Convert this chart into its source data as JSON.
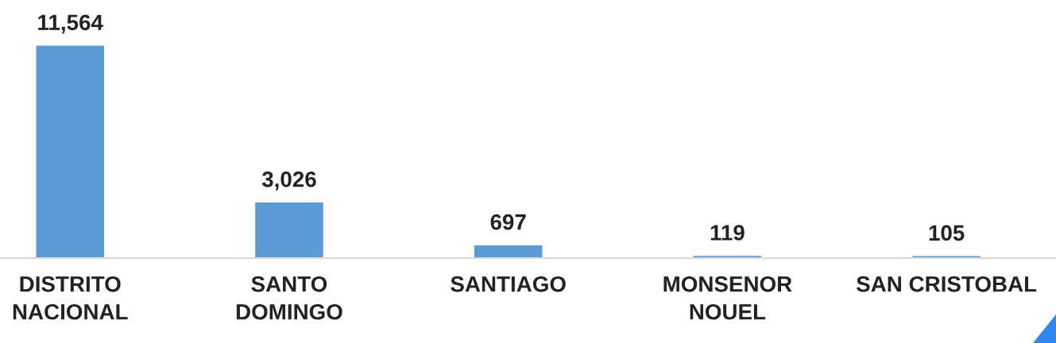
{
  "chart_data": {
    "type": "bar",
    "categories": [
      "DISTRITO\nNACIONAL",
      "SANTO\nDOMINGO",
      "SANTIAGO",
      "MONSENOR\nNOUEL",
      "SAN CRISTOBAL"
    ],
    "values": [
      11564,
      3026,
      697,
      119,
      105
    ],
    "value_labels": [
      "11,564",
      "3,026",
      "697",
      "119",
      "105"
    ],
    "color": "#5b9bd5",
    "grid": false,
    "legend": false
  }
}
